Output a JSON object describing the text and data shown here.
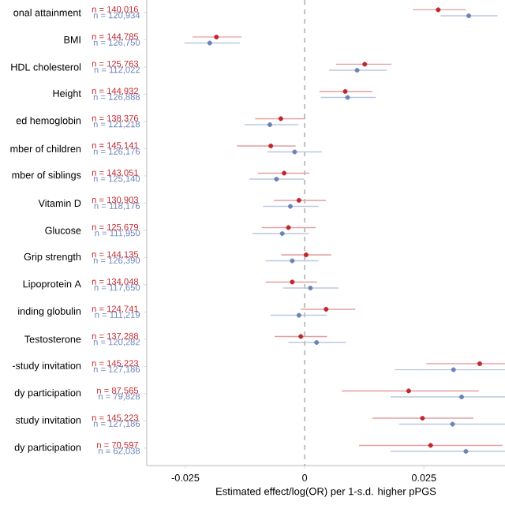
{
  "chart_data": {
    "type": "scatter",
    "orientation": "horizontal",
    "marker": "circle",
    "xlabel": "Estimated effect/log(OR) per 1-s.d. higher pPGS",
    "categories": [
      "onal attainment",
      "BMI",
      "HDL cholesterol",
      "Height",
      "ed hemoglobin",
      "mber of children",
      "mber of siblings",
      "Vitamin D",
      "Glucose",
      "Grip strength",
      "Lipoprotein A",
      "inding globulin",
      "Testosterone",
      "-study invitation",
      "dy participation",
      "study invitation",
      "dy participation"
    ],
    "xlim": [
      -0.0331,
      0.042
    ],
    "xticks": [
      {
        "value": -0.025,
        "label": "-0.025"
      },
      {
        "value": 0,
        "label": "0"
      },
      {
        "value": 0.025,
        "label": "0.025"
      }
    ],
    "ref_lines": [
      {
        "axis": "x",
        "value": 0,
        "color": "#999999",
        "line_style": "dashed"
      }
    ],
    "series": [
      {
        "color": "#c0272d",
        "values": [
          0.028,
          -0.0185,
          0.0126,
          0.0085,
          -0.005,
          -0.0071,
          -0.0043,
          -0.0012,
          -0.0034,
          0.0003,
          -0.0026,
          0.0045,
          -0.0008,
          0.0367,
          0.0218,
          0.0247,
          0.0264
        ],
        "errors": [
          [
            0.0227,
            0.0338
          ],
          [
            -0.0235,
            -0.0132
          ],
          [
            0.0066,
            0.0182
          ],
          [
            0.0031,
            0.0142
          ],
          [
            -0.0104,
            0.0001
          ],
          [
            -0.0142,
            -0.0019
          ],
          [
            -0.0098,
            0.001
          ],
          [
            -0.0065,
            0.0045
          ],
          [
            -0.009,
            0.0023
          ],
          [
            -0.0049,
            0.0056
          ],
          [
            -0.0082,
            0.0026
          ],
          [
            -0.0008,
            0.0106
          ],
          [
            -0.0063,
            0.0047
          ],
          [
            0.0255,
            0.042
          ],
          [
            0.0078,
            0.0365
          ],
          [
            0.0142,
            0.0354
          ],
          [
            0.0114,
            0.0415
          ]
        ]
      },
      {
        "color": "#6b82b8",
        "values": [
          0.0344,
          -0.0199,
          0.011,
          0.009,
          -0.0073,
          -0.0021,
          -0.0059,
          -0.003,
          -0.0047,
          -0.0026,
          0.0012,
          -0.0012,
          0.0025,
          0.0312,
          0.0329,
          0.031,
          0.0338
        ],
        "errors": [
          [
            0.0285,
            0.0404
          ],
          [
            -0.0252,
            -0.0136
          ],
          [
            0.0051,
            0.0172
          ],
          [
            0.0034,
            0.0149
          ],
          [
            -0.0126,
            -0.0013
          ],
          [
            -0.0078,
            0.0036
          ],
          [
            -0.0116,
            -0.0001
          ],
          [
            -0.0087,
            0.0029
          ],
          [
            -0.0109,
            0.0009
          ],
          [
            -0.0082,
            0.0029
          ],
          [
            -0.0045,
            0.0071
          ],
          [
            -0.0071,
            0.0047
          ],
          [
            -0.0034,
            0.0087
          ],
          [
            0.0189,
            0.042
          ],
          [
            0.018,
            0.042
          ],
          [
            0.0198,
            0.042
          ],
          [
            0.018,
            0.042
          ]
        ]
      }
    ],
    "annotations": [
      "n = 140,016",
      "n = 120,934",
      "n = 144,785",
      "n = 126,750",
      "n = 125,763",
      "n = 112,022",
      "n = 144,932",
      "n = 126,888",
      "n = 138,376",
      "n = 121,218",
      "n = 145,141",
      "n = 126,176",
      "n = 143,051",
      "n = 125,140",
      "n = 130,903",
      "n = 118,176",
      "n = 125,679",
      "n = 111,950",
      "n = 144,135",
      "n = 126,390",
      "n = 134,048",
      "n = 117,650",
      "n = 124,741",
      "n = 111,219",
      "n = 137,288",
      "n = 120,282",
      "n = 145,223",
      "n = 127,186",
      "n = 87,565",
      "n = 79,828",
      "n = 145,223",
      "n = 127,186",
      "n = 70,597",
      "n = 62,038"
    ]
  }
}
